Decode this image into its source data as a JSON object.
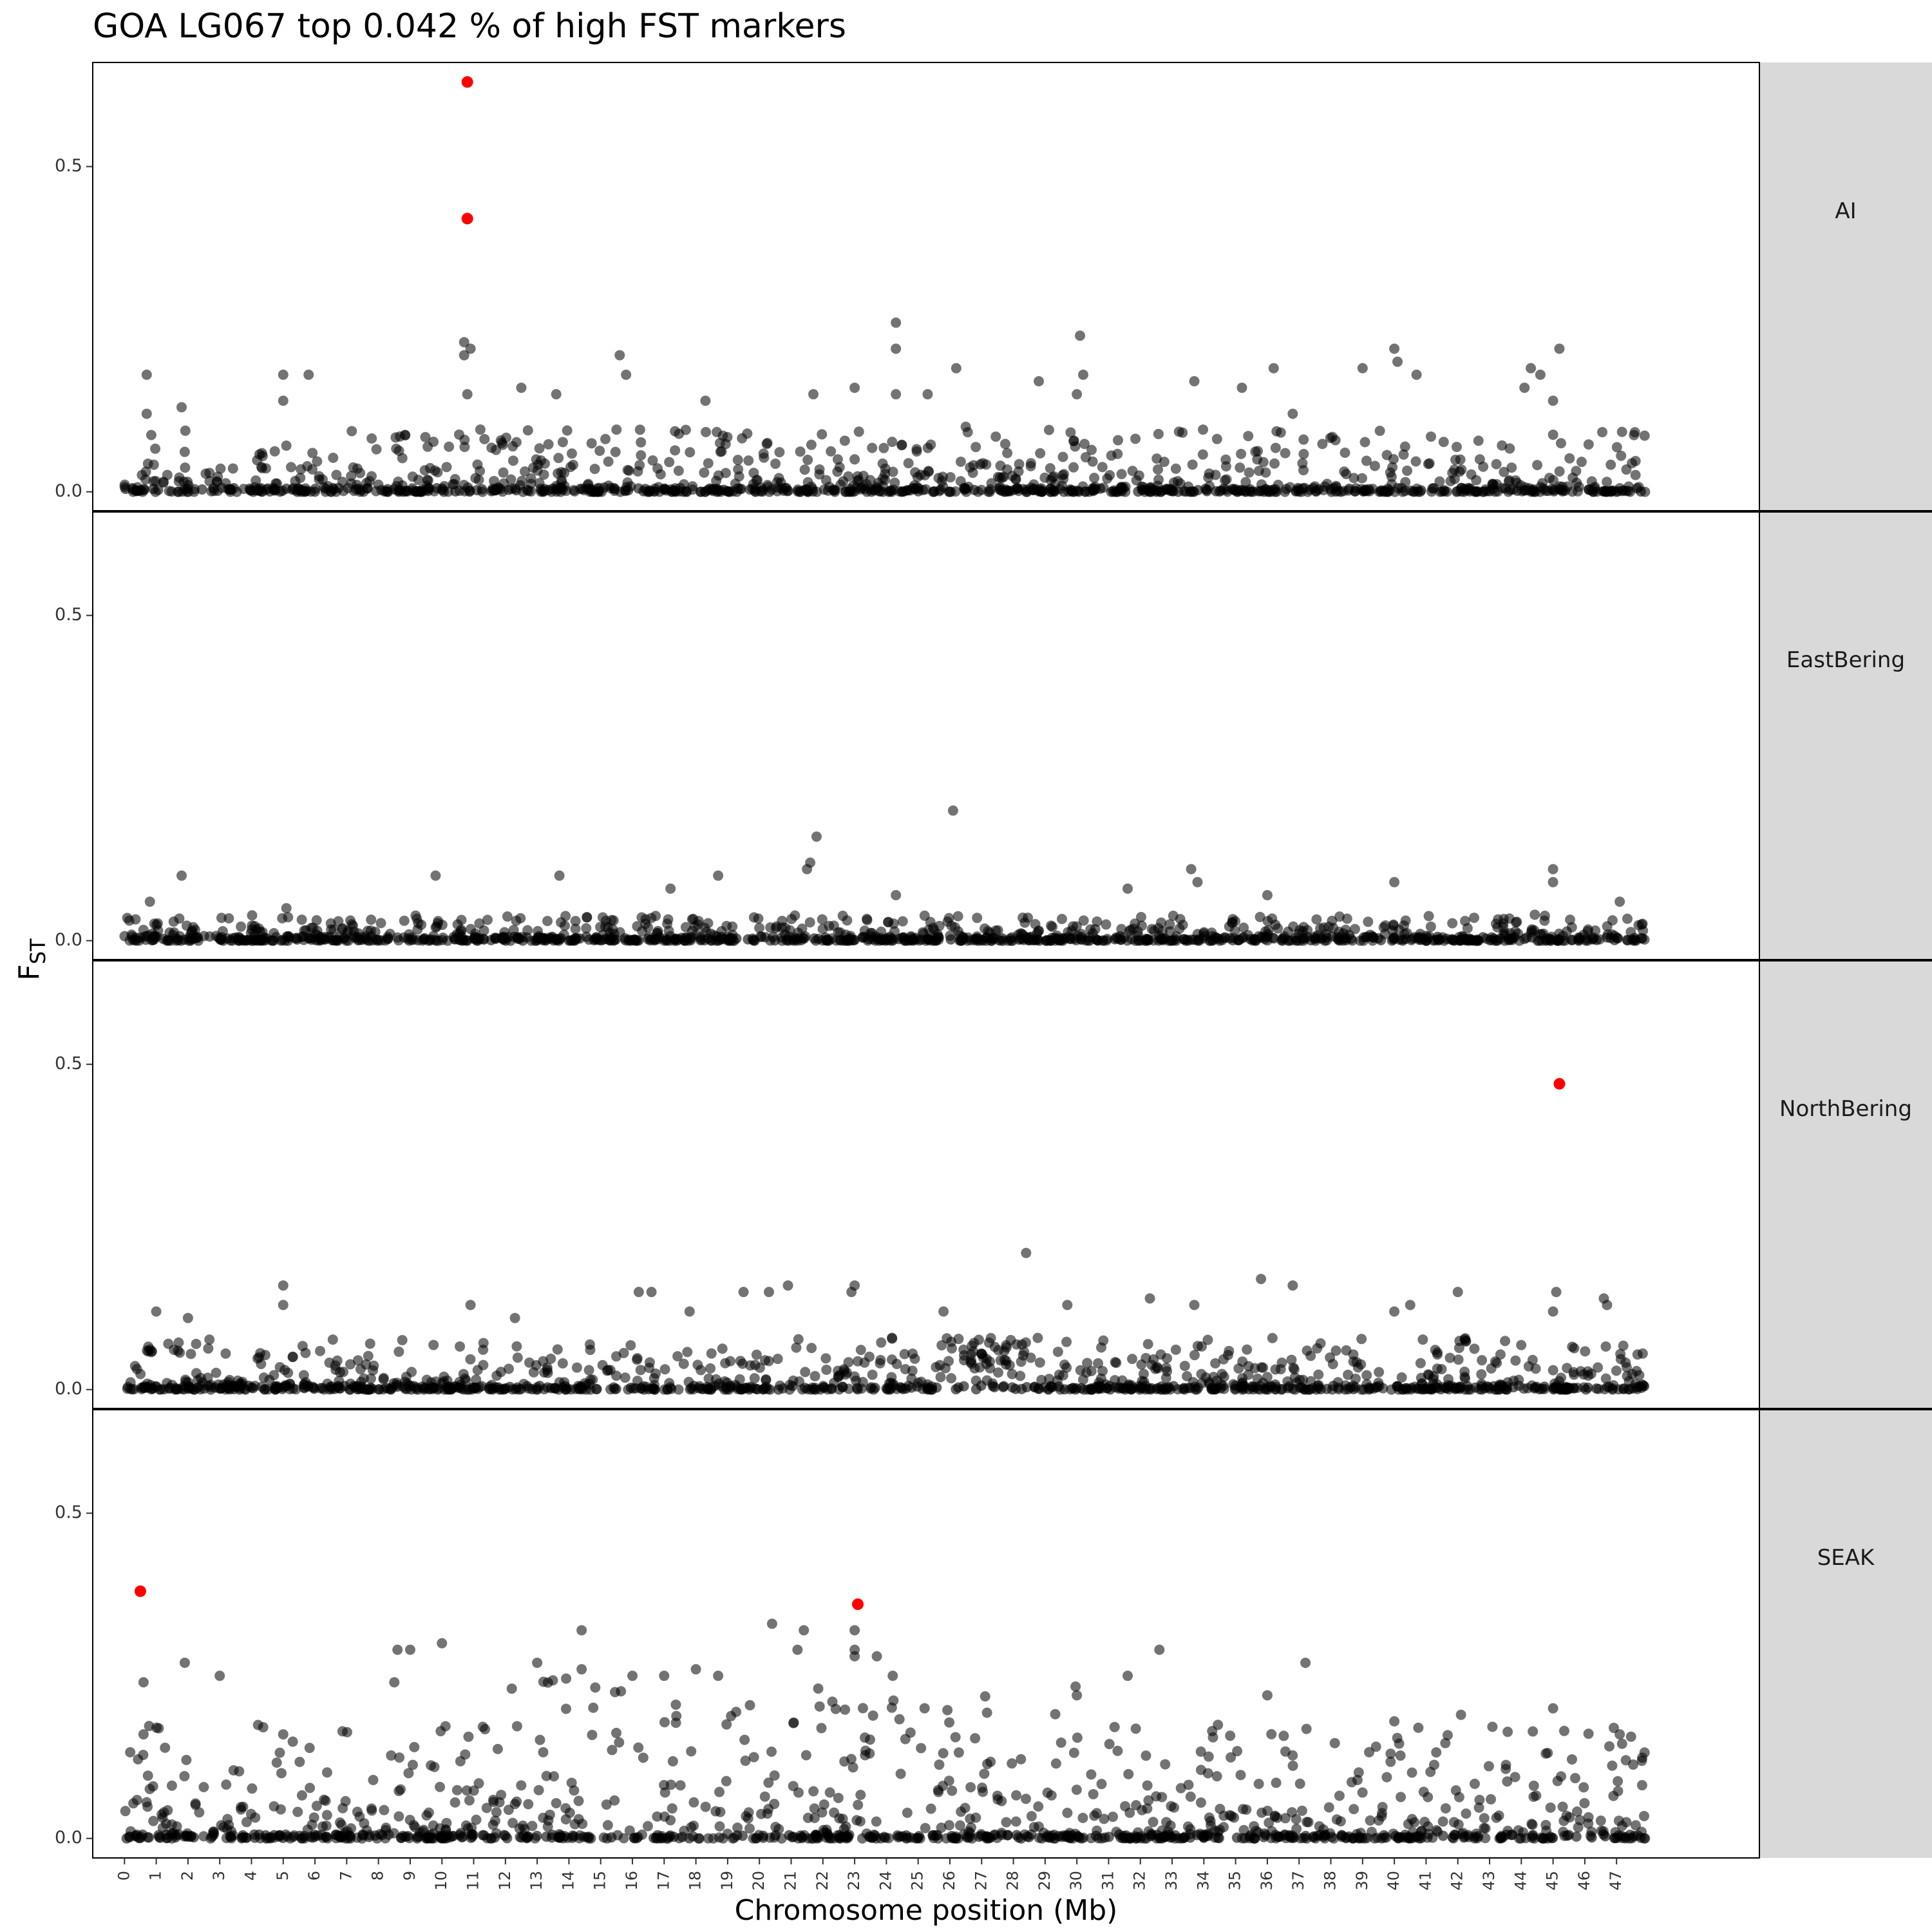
{
  "chart_data": {
    "type": "scatter",
    "title": "GOA LG067 top 0.042 % of high FST markers",
    "xlabel": "Chromosome position (Mb)",
    "ylabel": "F",
    "ylabel_subscript": "ST",
    "xlim": [
      -1,
      51.5
    ],
    "ylim": [
      -0.03,
      0.66
    ],
    "x_ticks": [
      0,
      1,
      2,
      3,
      4,
      5,
      6,
      7,
      8,
      9,
      10,
      11,
      12,
      13,
      14,
      15,
      16,
      17,
      18,
      19,
      20,
      21,
      22,
      23,
      24,
      25,
      26,
      27,
      28,
      29,
      30,
      31,
      32,
      33,
      34,
      35,
      36,
      37,
      38,
      39,
      40,
      41,
      42,
      43,
      44,
      45,
      46,
      47
    ],
    "y_ticks": [
      "0.0",
      "0.5"
    ],
    "y_tick_values": [
      0.0,
      0.5
    ],
    "colors": {
      "background_points": "#000000",
      "highlight_points": "#ff0000",
      "strip_background": "#d9d9d9"
    },
    "panels": [
      {
        "name": "AI",
        "highlighted": [
          {
            "x": 10.8,
            "y": 0.63
          },
          {
            "x": 10.8,
            "y": 0.42
          }
        ],
        "notable": [
          {
            "x": 0.7,
            "y": 0.18
          },
          {
            "x": 0.7,
            "y": 0.12
          },
          {
            "x": 1.8,
            "y": 0.13
          },
          {
            "x": 5.0,
            "y": 0.18
          },
          {
            "x": 5.8,
            "y": 0.18
          },
          {
            "x": 5.0,
            "y": 0.14
          },
          {
            "x": 10.7,
            "y": 0.23
          },
          {
            "x": 10.7,
            "y": 0.21
          },
          {
            "x": 10.9,
            "y": 0.22
          },
          {
            "x": 10.8,
            "y": 0.15
          },
          {
            "x": 13.6,
            "y": 0.15
          },
          {
            "x": 15.6,
            "y": 0.21
          },
          {
            "x": 15.8,
            "y": 0.18
          },
          {
            "x": 23.0,
            "y": 0.16
          },
          {
            "x": 24.3,
            "y": 0.26
          },
          {
            "x": 24.3,
            "y": 0.22
          },
          {
            "x": 24.3,
            "y": 0.15
          },
          {
            "x": 25.3,
            "y": 0.15
          },
          {
            "x": 26.2,
            "y": 0.19
          },
          {
            "x": 26.5,
            "y": 0.1
          },
          {
            "x": 28.8,
            "y": 0.17
          },
          {
            "x": 30.1,
            "y": 0.24
          },
          {
            "x": 30.2,
            "y": 0.18
          },
          {
            "x": 30.0,
            "y": 0.15
          },
          {
            "x": 33.7,
            "y": 0.17
          },
          {
            "x": 35.2,
            "y": 0.16
          },
          {
            "x": 36.2,
            "y": 0.19
          },
          {
            "x": 36.8,
            "y": 0.12
          },
          {
            "x": 39.0,
            "y": 0.19
          },
          {
            "x": 40.0,
            "y": 0.22
          },
          {
            "x": 40.1,
            "y": 0.2
          },
          {
            "x": 40.7,
            "y": 0.18
          },
          {
            "x": 44.3,
            "y": 0.19
          },
          {
            "x": 44.6,
            "y": 0.18
          },
          {
            "x": 45.2,
            "y": 0.22
          },
          {
            "x": 45.0,
            "y": 0.14
          },
          {
            "x": 44.1,
            "y": 0.16
          },
          {
            "x": 18.3,
            "y": 0.14
          },
          {
            "x": 12.5,
            "y": 0.16
          },
          {
            "x": 21.7,
            "y": 0.15
          }
        ]
      },
      {
        "name": "EastBering",
        "highlighted": [],
        "notable": [
          {
            "x": 1.8,
            "y": 0.1
          },
          {
            "x": 9.8,
            "y": 0.1
          },
          {
            "x": 13.7,
            "y": 0.1
          },
          {
            "x": 17.2,
            "y": 0.08
          },
          {
            "x": 18.7,
            "y": 0.1
          },
          {
            "x": 21.6,
            "y": 0.12
          },
          {
            "x": 21.8,
            "y": 0.16
          },
          {
            "x": 21.5,
            "y": 0.11
          },
          {
            "x": 24.3,
            "y": 0.07
          },
          {
            "x": 26.1,
            "y": 0.2
          },
          {
            "x": 33.6,
            "y": 0.11
          },
          {
            "x": 33.8,
            "y": 0.09
          },
          {
            "x": 36.0,
            "y": 0.07
          },
          {
            "x": 40.0,
            "y": 0.09
          },
          {
            "x": 45.0,
            "y": 0.11
          },
          {
            "x": 45.0,
            "y": 0.09
          },
          {
            "x": 47.1,
            "y": 0.06
          },
          {
            "x": 0.8,
            "y": 0.06
          },
          {
            "x": 5.1,
            "y": 0.05
          },
          {
            "x": 31.6,
            "y": 0.08
          }
        ]
      },
      {
        "name": "NorthBering",
        "highlighted": [
          {
            "x": 45.2,
            "y": 0.47
          }
        ],
        "notable": [
          {
            "x": 1.0,
            "y": 0.12
          },
          {
            "x": 2.0,
            "y": 0.11
          },
          {
            "x": 5.0,
            "y": 0.16
          },
          {
            "x": 5.0,
            "y": 0.13
          },
          {
            "x": 10.9,
            "y": 0.13
          },
          {
            "x": 12.3,
            "y": 0.11
          },
          {
            "x": 16.2,
            "y": 0.15
          },
          {
            "x": 16.6,
            "y": 0.15
          },
          {
            "x": 17.8,
            "y": 0.12
          },
          {
            "x": 19.5,
            "y": 0.15
          },
          {
            "x": 20.3,
            "y": 0.15
          },
          {
            "x": 20.9,
            "y": 0.16
          },
          {
            "x": 23.0,
            "y": 0.16
          },
          {
            "x": 22.9,
            "y": 0.15
          },
          {
            "x": 25.8,
            "y": 0.12
          },
          {
            "x": 28.4,
            "y": 0.21
          },
          {
            "x": 29.7,
            "y": 0.13
          },
          {
            "x": 32.3,
            "y": 0.14
          },
          {
            "x": 33.7,
            "y": 0.13
          },
          {
            "x": 35.8,
            "y": 0.17
          },
          {
            "x": 36.8,
            "y": 0.16
          },
          {
            "x": 40.0,
            "y": 0.12
          },
          {
            "x": 40.5,
            "y": 0.13
          },
          {
            "x": 42.0,
            "y": 0.15
          },
          {
            "x": 45.1,
            "y": 0.15
          },
          {
            "x": 45.0,
            "y": 0.12
          },
          {
            "x": 46.6,
            "y": 0.14
          },
          {
            "x": 46.7,
            "y": 0.13
          }
        ]
      },
      {
        "name": "SEAK",
        "highlighted": [
          {
            "x": 0.5,
            "y": 0.38
          },
          {
            "x": 23.1,
            "y": 0.36
          }
        ],
        "notable": [
          {
            "x": 0.6,
            "y": 0.24
          },
          {
            "x": 1.9,
            "y": 0.27
          },
          {
            "x": 3.0,
            "y": 0.25
          },
          {
            "x": 8.6,
            "y": 0.29
          },
          {
            "x": 9.0,
            "y": 0.29
          },
          {
            "x": 10.0,
            "y": 0.3
          },
          {
            "x": 8.5,
            "y": 0.24
          },
          {
            "x": 13.0,
            "y": 0.27
          },
          {
            "x": 14.4,
            "y": 0.32
          },
          {
            "x": 14.4,
            "y": 0.26
          },
          {
            "x": 16.0,
            "y": 0.25
          },
          {
            "x": 17.0,
            "y": 0.25
          },
          {
            "x": 18.0,
            "y": 0.26
          },
          {
            "x": 18.7,
            "y": 0.25
          },
          {
            "x": 20.4,
            "y": 0.33
          },
          {
            "x": 21.4,
            "y": 0.32
          },
          {
            "x": 21.2,
            "y": 0.29
          },
          {
            "x": 23.0,
            "y": 0.32
          },
          {
            "x": 23.0,
            "y": 0.29
          },
          {
            "x": 23.0,
            "y": 0.28
          },
          {
            "x": 23.7,
            "y": 0.28
          },
          {
            "x": 24.2,
            "y": 0.25
          },
          {
            "x": 32.6,
            "y": 0.29
          },
          {
            "x": 31.6,
            "y": 0.25
          },
          {
            "x": 37.2,
            "y": 0.27
          },
          {
            "x": 36.0,
            "y": 0.22
          },
          {
            "x": 30.0,
            "y": 0.22
          },
          {
            "x": 45.0,
            "y": 0.2
          },
          {
            "x": 42.1,
            "y": 0.19
          },
          {
            "x": 40.0,
            "y": 0.18
          },
          {
            "x": 47.1,
            "y": 0.16
          },
          {
            "x": 5.0,
            "y": 0.16
          },
          {
            "x": 0.6,
            "y": 0.16
          }
        ]
      }
    ]
  }
}
